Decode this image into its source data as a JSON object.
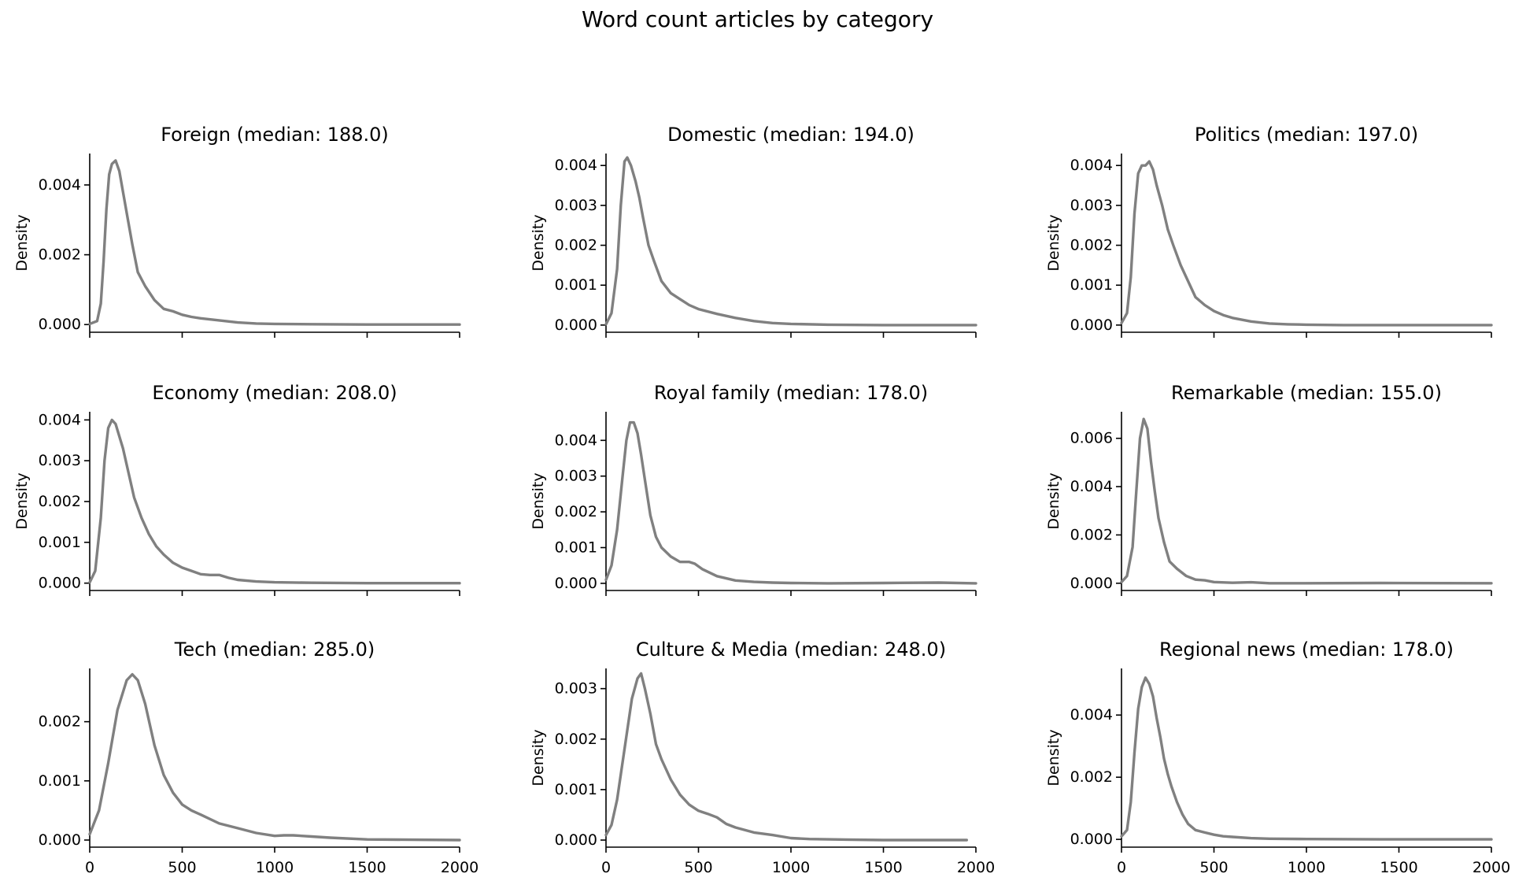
{
  "figure": {
    "title": "Word count articles by category"
  },
  "chart_data": [
    {
      "type": "line",
      "title": "Foreign (median: 188.0)",
      "xlabel": "",
      "ylabel": "Density",
      "xlim": [
        0,
        2000
      ],
      "ylim": [
        -0.00022,
        0.0049
      ],
      "yticks": [
        0.0,
        0.002,
        0.004
      ],
      "ytick_labels": [
        "0.000",
        "0.002",
        "0.004"
      ],
      "xticks": [
        0,
        500,
        1000,
        1500,
        2000
      ],
      "xtick_labels": [],
      "line_color": "#808080",
      "grid": false,
      "x": [
        0,
        40,
        60,
        75,
        90,
        105,
        120,
        140,
        160,
        180,
        200,
        230,
        260,
        300,
        350,
        400,
        450,
        500,
        550,
        600,
        700,
        800,
        900,
        1000,
        1200,
        1500,
        2000
      ],
      "y": [
        2e-05,
        0.0001,
        0.0006,
        0.0018,
        0.0033,
        0.0043,
        0.0046,
        0.0047,
        0.0044,
        0.0038,
        0.0032,
        0.0023,
        0.0015,
        0.0011,
        0.0007,
        0.00045,
        0.00038,
        0.00028,
        0.00022,
        0.00018,
        0.00012,
        6e-05,
        3e-05,
        2e-05,
        1e-05,
        0.0,
        0.0
      ]
    },
    {
      "type": "line",
      "title": "Domestic (median: 194.0)",
      "xlabel": "",
      "ylabel": "Density",
      "xlim": [
        0,
        2000
      ],
      "ylim": [
        -0.00018,
        0.0043
      ],
      "yticks": [
        0.0,
        0.001,
        0.002,
        0.003,
        0.004
      ],
      "ytick_labels": [
        "0.000",
        "0.001",
        "0.002",
        "0.003",
        "0.004"
      ],
      "xticks": [
        0,
        500,
        1000,
        1500,
        2000
      ],
      "xtick_labels": [],
      "line_color": "#808080",
      "grid": false,
      "x": [
        0,
        30,
        60,
        80,
        100,
        115,
        135,
        160,
        180,
        200,
        230,
        260,
        300,
        350,
        400,
        450,
        500,
        600,
        700,
        800,
        900,
        1000,
        1200,
        1500,
        2000
      ],
      "y": [
        2e-05,
        0.0003,
        0.0014,
        0.003,
        0.0041,
        0.0042,
        0.004,
        0.0036,
        0.0032,
        0.0027,
        0.002,
        0.0016,
        0.0011,
        0.0008,
        0.00065,
        0.0005,
        0.0004,
        0.00028,
        0.00018,
        0.0001,
        5e-05,
        3e-05,
        1e-05,
        0.0,
        0.0
      ]
    },
    {
      "type": "line",
      "title": "Politics (median: 197.0)",
      "xlabel": "",
      "ylabel": "Density",
      "xlim": [
        0,
        2000
      ],
      "ylim": [
        -0.00018,
        0.0043
      ],
      "yticks": [
        0.0,
        0.001,
        0.002,
        0.003,
        0.004
      ],
      "ytick_labels": [
        "0.000",
        "0.001",
        "0.002",
        "0.003",
        "0.004"
      ],
      "xticks": [
        0,
        500,
        1000,
        1500,
        2000
      ],
      "xtick_labels": [],
      "line_color": "#808080",
      "grid": false,
      "x": [
        0,
        30,
        50,
        70,
        90,
        110,
        130,
        150,
        170,
        190,
        220,
        250,
        280,
        320,
        360,
        400,
        450,
        500,
        550,
        600,
        700,
        800,
        900,
        1000,
        1200,
        1500,
        2000
      ],
      "y": [
        5e-05,
        0.0003,
        0.0012,
        0.0028,
        0.0038,
        0.004,
        0.004,
        0.0041,
        0.0039,
        0.0035,
        0.003,
        0.0024,
        0.002,
        0.0015,
        0.0011,
        0.0007,
        0.0005,
        0.00035,
        0.00025,
        0.00018,
        9e-05,
        4e-05,
        2e-05,
        1e-05,
        0.0,
        0.0,
        0.0
      ]
    },
    {
      "type": "line",
      "title": "Economy (median: 208.0)",
      "xlabel": "",
      "ylabel": "Density",
      "xlim": [
        0,
        2000
      ],
      "ylim": [
        -0.00018,
        0.0042
      ],
      "yticks": [
        0.0,
        0.001,
        0.002,
        0.003,
        0.004
      ],
      "ytick_labels": [
        "0.000",
        "0.001",
        "0.002",
        "0.003",
        "0.004"
      ],
      "xticks": [
        0,
        500,
        1000,
        1500,
        2000
      ],
      "xtick_labels": [],
      "line_color": "#808080",
      "grid": false,
      "x": [
        0,
        30,
        60,
        80,
        100,
        120,
        140,
        160,
        180,
        200,
        240,
        280,
        320,
        360,
        400,
        450,
        500,
        550,
        600,
        650,
        700,
        750,
        800,
        900,
        1000,
        1200,
        1500,
        2000
      ],
      "y": [
        2e-05,
        0.0003,
        0.0016,
        0.003,
        0.0038,
        0.004,
        0.0039,
        0.0036,
        0.0033,
        0.0029,
        0.0021,
        0.0016,
        0.0012,
        0.0009,
        0.0007,
        0.0005,
        0.00038,
        0.0003,
        0.00022,
        0.0002,
        0.0002,
        0.00013,
        8e-05,
        4e-05,
        2e-05,
        1e-05,
        0.0,
        0.0
      ]
    },
    {
      "type": "line",
      "title": "Royal family (median: 178.0)",
      "xlabel": "",
      "ylabel": "Density",
      "xlim": [
        0,
        2000
      ],
      "ylim": [
        -0.0002,
        0.0048
      ],
      "yticks": [
        0.0,
        0.001,
        0.002,
        0.003,
        0.004
      ],
      "ytick_labels": [
        "0.000",
        "0.001",
        "0.002",
        "0.003",
        "0.004"
      ],
      "xticks": [
        0,
        500,
        1000,
        1500,
        2000
      ],
      "xtick_labels": [],
      "line_color": "#808080",
      "grid": false,
      "x": [
        0,
        30,
        60,
        90,
        110,
        130,
        150,
        170,
        190,
        210,
        240,
        270,
        300,
        350,
        400,
        450,
        480,
        520,
        560,
        600,
        700,
        800,
        900,
        1000,
        1200,
        1500,
        1800,
        2000
      ],
      "y": [
        0.0001,
        0.0005,
        0.0015,
        0.003,
        0.004,
        0.0045,
        0.0045,
        0.0042,
        0.0036,
        0.0029,
        0.0019,
        0.0013,
        0.001,
        0.00075,
        0.0006,
        0.0006,
        0.00055,
        0.0004,
        0.0003,
        0.0002,
        8e-05,
        4e-05,
        2e-05,
        1e-05,
        0.0,
        1e-05,
        2e-05,
        0.0
      ]
    },
    {
      "type": "line",
      "title": "Remarkable (median: 155.0)",
      "xlabel": "",
      "ylabel": "Density",
      "xlim": [
        0,
        2000
      ],
      "ylim": [
        -0.0003,
        0.0071
      ],
      "yticks": [
        0.0,
        0.002,
        0.004,
        0.006
      ],
      "ytick_labels": [
        "0.000",
        "0.002",
        "0.004",
        "0.006"
      ],
      "xticks": [
        0,
        500,
        1000,
        1500,
        2000
      ],
      "xtick_labels": [],
      "line_color": "#808080",
      "grid": false,
      "x": [
        0,
        30,
        60,
        80,
        100,
        120,
        140,
        160,
        180,
        200,
        230,
        260,
        300,
        350,
        400,
        450,
        500,
        600,
        700,
        800,
        1000,
        1400,
        2000
      ],
      "y": [
        5e-05,
        0.0003,
        0.0015,
        0.0038,
        0.006,
        0.0068,
        0.0064,
        0.005,
        0.0038,
        0.0027,
        0.0017,
        0.0009,
        0.0006,
        0.0003,
        0.00015,
        0.00012,
        5e-05,
        2e-05,
        4e-05,
        0.0,
        0.0,
        1e-05,
        0.0
      ]
    },
    {
      "type": "line",
      "title": "Tech (median: 285.0)",
      "xlabel": "",
      "ylabel": "",
      "xlim": [
        0,
        2000
      ],
      "ylim": [
        -0.00012,
        0.0029
      ],
      "yticks": [
        0.0,
        0.001,
        0.002
      ],
      "ytick_labels": [
        "0.000",
        "0.001",
        "0.002"
      ],
      "xticks": [
        0,
        500,
        1000,
        1500,
        2000
      ],
      "xtick_labels": [
        "0",
        "500",
        "1000",
        "1500",
        "2000"
      ],
      "line_color": "#808080",
      "grid": false,
      "x": [
        0,
        50,
        100,
        150,
        200,
        230,
        260,
        300,
        350,
        400,
        450,
        500,
        550,
        600,
        700,
        800,
        900,
        1000,
        1050,
        1100,
        1200,
        1300,
        1500,
        2000
      ],
      "y": [
        0.0001,
        0.0005,
        0.0013,
        0.0022,
        0.0027,
        0.0028,
        0.0027,
        0.0023,
        0.0016,
        0.0011,
        0.0008,
        0.0006,
        0.0005,
        0.00043,
        0.00028,
        0.0002,
        0.00012,
        7e-05,
        8e-05,
        8e-05,
        6e-05,
        4e-05,
        1e-05,
        0.0
      ]
    },
    {
      "type": "line",
      "title": "Culture & Media (median: 248.0)",
      "xlabel": "",
      "ylabel": "Density",
      "xlim": [
        0,
        2000
      ],
      "ylim": [
        -0.00014,
        0.0034
      ],
      "yticks": [
        0.0,
        0.001,
        0.002,
        0.003
      ],
      "ytick_labels": [
        "0.000",
        "0.001",
        "0.002",
        "0.003"
      ],
      "xticks": [
        0,
        500,
        1000,
        1500,
        2000
      ],
      "xtick_labels": [
        "0",
        "500",
        "1000",
        "1500",
        "2000"
      ],
      "line_color": "#808080",
      "grid": false,
      "x": [
        0,
        30,
        60,
        100,
        140,
        170,
        190,
        210,
        240,
        270,
        300,
        350,
        400,
        450,
        500,
        550,
        600,
        650,
        700,
        800,
        900,
        1000,
        1100,
        1300,
        1500,
        1950
      ],
      "y": [
        0.0001,
        0.0003,
        0.0008,
        0.0018,
        0.0028,
        0.0032,
        0.0033,
        0.003,
        0.0025,
        0.0019,
        0.0016,
        0.0012,
        0.0009,
        0.0007,
        0.00058,
        0.00052,
        0.00045,
        0.00032,
        0.00025,
        0.00015,
        0.0001,
        4e-05,
        2e-05,
        1e-05,
        0.0,
        0.0
      ]
    },
    {
      "type": "line",
      "title": "Regional news (median: 178.0)",
      "xlabel": "",
      "ylabel": "Density",
      "xlim": [
        0,
        2000
      ],
      "ylim": [
        -0.00025,
        0.0055
      ],
      "yticks": [
        0.0,
        0.002,
        0.004
      ],
      "ytick_labels": [
        "0.000",
        "0.002",
        "0.004"
      ],
      "xticks": [
        0,
        500,
        1000,
        1500,
        2000
      ],
      "xtick_labels": [
        "0",
        "500",
        "1000",
        "1500",
        "2000"
      ],
      "line_color": "#808080",
      "grid": false,
      "x": [
        0,
        30,
        50,
        70,
        90,
        110,
        130,
        150,
        170,
        190,
        210,
        230,
        250,
        270,
        300,
        330,
        360,
        400,
        450,
        500,
        550,
        600,
        700,
        800,
        1000,
        1400,
        2000
      ],
      "y": [
        0.0001,
        0.0003,
        0.0012,
        0.0028,
        0.0042,
        0.0049,
        0.0052,
        0.005,
        0.0046,
        0.0039,
        0.0033,
        0.0026,
        0.0021,
        0.0017,
        0.0012,
        0.0008,
        0.0005,
        0.0003,
        0.00022,
        0.00015,
        0.0001,
        8e-05,
        4e-05,
        2e-05,
        1e-05,
        0.0,
        0.0
      ]
    }
  ]
}
